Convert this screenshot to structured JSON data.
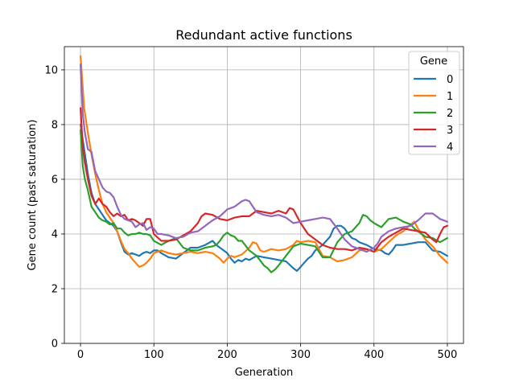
{
  "chart_data": {
    "type": "line",
    "title": "Redundant active functions",
    "xlabel": "Generation",
    "ylabel": "Gene count (past saturation)",
    "xlim": [
      -22,
      522
    ],
    "ylim": [
      0,
      10.85
    ],
    "xticks": [
      0,
      100,
      200,
      300,
      400,
      500
    ],
    "yticks": [
      0,
      2,
      4,
      6,
      8,
      10
    ],
    "grid": true,
    "legend": {
      "title": "Gene",
      "placement": "top-right"
    },
    "series": [
      {
        "name": "0",
        "color": "#1f77b4",
        "x": [
          0,
          5,
          10,
          15,
          20,
          25,
          30,
          35,
          40,
          45,
          50,
          55,
          60,
          65,
          70,
          75,
          80,
          85,
          90,
          95,
          100,
          105,
          110,
          120,
          130,
          140,
          150,
          160,
          170,
          180,
          185,
          190,
          195,
          200,
          205,
          210,
          215,
          220,
          225,
          230,
          240,
          250,
          260,
          270,
          280,
          290,
          295,
          300,
          305,
          310,
          315,
          320,
          330,
          340,
          345,
          350,
          355,
          360,
          365,
          370,
          375,
          380,
          390,
          400,
          410,
          415,
          420,
          425,
          430,
          440,
          450,
          460,
          470,
          480,
          490,
          500
        ],
        "y": [
          8.0,
          7.1,
          6.2,
          5.5,
          5.1,
          4.9,
          4.7,
          4.5,
          4.4,
          4.3,
          4.1,
          3.7,
          3.35,
          3.25,
          3.3,
          3.25,
          3.2,
          3.3,
          3.35,
          3.3,
          3.4,
          3.4,
          3.3,
          3.15,
          3.1,
          3.3,
          3.5,
          3.5,
          3.6,
          3.75,
          3.6,
          3.5,
          3.4,
          3.3,
          3.1,
          2.95,
          3.05,
          3.0,
          3.1,
          3.05,
          3.2,
          3.15,
          3.1,
          3.05,
          3.0,
          2.75,
          2.65,
          2.8,
          2.95,
          3.1,
          3.2,
          3.4,
          3.6,
          3.9,
          4.2,
          4.3,
          4.3,
          4.2,
          4.0,
          3.85,
          3.8,
          3.7,
          3.6,
          3.45,
          3.4,
          3.3,
          3.25,
          3.4,
          3.6,
          3.6,
          3.65,
          3.7,
          3.7,
          3.4,
          3.35,
          3.2
        ]
      },
      {
        "name": "1",
        "color": "#ff7f0e",
        "x": [
          0,
          5,
          10,
          15,
          20,
          25,
          30,
          35,
          40,
          45,
          50,
          55,
          60,
          65,
          70,
          75,
          80,
          85,
          90,
          95,
          100,
          110,
          120,
          130,
          140,
          150,
          160,
          170,
          180,
          190,
          195,
          200,
          205,
          210,
          220,
          230,
          235,
          240,
          245,
          250,
          260,
          270,
          280,
          290,
          295,
          300,
          310,
          320,
          330,
          340,
          350,
          360,
          370,
          380,
          390,
          395,
          400,
          410,
          420,
          430,
          440,
          450,
          455,
          460,
          470,
          480,
          490,
          500
        ],
        "y": [
          10.5,
          8.6,
          7.7,
          6.9,
          6.2,
          5.6,
          5.1,
          4.8,
          4.6,
          4.4,
          4.1,
          3.75,
          3.45,
          3.3,
          3.1,
          2.95,
          2.8,
          2.85,
          2.95,
          3.1,
          3.3,
          3.4,
          3.3,
          3.25,
          3.3,
          3.35,
          3.3,
          3.35,
          3.3,
          3.1,
          2.95,
          3.1,
          3.2,
          3.15,
          3.25,
          3.5,
          3.7,
          3.65,
          3.4,
          3.35,
          3.45,
          3.4,
          3.45,
          3.6,
          3.75,
          3.7,
          3.75,
          3.7,
          3.2,
          3.15,
          3.0,
          3.05,
          3.15,
          3.4,
          3.45,
          3.4,
          3.35,
          3.45,
          3.7,
          3.95,
          4.1,
          4.35,
          4.45,
          4.2,
          3.8,
          3.55,
          3.2,
          2.95
        ]
      },
      {
        "name": "2",
        "color": "#2ca02c",
        "x": [
          0,
          3,
          6,
          10,
          15,
          20,
          25,
          30,
          35,
          40,
          45,
          50,
          55,
          60,
          65,
          70,
          75,
          80,
          85,
          90,
          95,
          100,
          110,
          120,
          130,
          140,
          150,
          160,
          170,
          180,
          185,
          190,
          195,
          200,
          205,
          210,
          215,
          220,
          230,
          240,
          250,
          255,
          260,
          265,
          270,
          280,
          290,
          300,
          310,
          320,
          330,
          340,
          350,
          360,
          370,
          380,
          385,
          390,
          395,
          400,
          410,
          420,
          430,
          440,
          450,
          455,
          460,
          470,
          480,
          490,
          500
        ],
        "y": [
          7.8,
          6.5,
          6.0,
          5.6,
          5.0,
          4.8,
          4.6,
          4.5,
          4.45,
          4.35,
          4.4,
          4.2,
          4.2,
          4.05,
          3.95,
          4.0,
          4.0,
          4.05,
          4.0,
          4.0,
          3.95,
          3.75,
          3.6,
          3.75,
          3.85,
          3.5,
          3.4,
          3.4,
          3.5,
          3.55,
          3.6,
          3.75,
          3.95,
          4.05,
          3.95,
          3.9,
          3.75,
          3.75,
          3.4,
          3.2,
          2.85,
          2.75,
          2.6,
          2.7,
          2.85,
          3.2,
          3.55,
          3.65,
          3.6,
          3.55,
          3.15,
          3.15,
          3.7,
          4.0,
          4.1,
          4.4,
          4.7,
          4.65,
          4.5,
          4.4,
          4.25,
          4.55,
          4.6,
          4.45,
          4.35,
          4.2,
          4.1,
          3.9,
          3.85,
          3.7,
          3.85
        ]
      },
      {
        "name": "3",
        "color": "#d62728",
        "x": [
          0,
          3,
          6,
          10,
          15,
          20,
          25,
          30,
          35,
          40,
          45,
          50,
          55,
          60,
          65,
          70,
          75,
          80,
          85,
          90,
          95,
          100,
          110,
          120,
          130,
          140,
          150,
          160,
          165,
          170,
          180,
          190,
          200,
          210,
          220,
          230,
          240,
          250,
          260,
          270,
          280,
          285,
          290,
          300,
          310,
          320,
          330,
          340,
          350,
          360,
          370,
          380,
          390,
          400,
          410,
          420,
          430,
          440,
          450,
          460,
          470,
          480,
          485,
          490,
          495,
          500
        ],
        "y": [
          8.6,
          7.2,
          6.6,
          6.0,
          5.4,
          5.1,
          5.3,
          5.1,
          5.0,
          4.8,
          4.65,
          4.75,
          4.65,
          4.7,
          4.5,
          4.55,
          4.5,
          4.4,
          4.3,
          4.55,
          4.55,
          4.0,
          3.75,
          3.75,
          3.8,
          3.95,
          4.1,
          4.4,
          4.65,
          4.75,
          4.7,
          4.55,
          4.5,
          4.6,
          4.65,
          4.65,
          4.85,
          4.8,
          4.75,
          4.85,
          4.75,
          4.95,
          4.9,
          4.4,
          4.0,
          3.8,
          3.6,
          3.5,
          3.45,
          3.45,
          3.4,
          3.5,
          3.45,
          3.35,
          3.7,
          3.9,
          4.05,
          4.2,
          4.15,
          4.1,
          4.05,
          3.8,
          3.7,
          4.0,
          4.25,
          4.3
        ]
      },
      {
        "name": "4",
        "color": "#9467bd",
        "x": [
          0,
          3,
          6,
          10,
          15,
          20,
          25,
          30,
          35,
          40,
          45,
          50,
          55,
          60,
          65,
          70,
          75,
          80,
          85,
          90,
          95,
          100,
          105,
          110,
          120,
          130,
          140,
          150,
          160,
          170,
          180,
          190,
          200,
          205,
          210,
          215,
          220,
          225,
          230,
          235,
          240,
          250,
          260,
          270,
          280,
          290,
          300,
          310,
          320,
          330,
          340,
          350,
          360,
          370,
          380,
          390,
          400,
          405,
          410,
          420,
          430,
          440,
          450,
          460,
          470,
          480,
          490,
          500
        ],
        "y": [
          10.2,
          8.4,
          7.7,
          7.1,
          7.0,
          6.3,
          6.0,
          5.7,
          5.55,
          5.5,
          5.35,
          5.0,
          4.7,
          4.55,
          4.5,
          4.45,
          4.25,
          4.35,
          4.4,
          4.15,
          4.25,
          4.2,
          4.0,
          4.0,
          3.95,
          3.85,
          3.9,
          4.05,
          4.1,
          4.3,
          4.5,
          4.65,
          4.9,
          4.95,
          5.0,
          5.1,
          5.2,
          5.25,
          5.2,
          5.0,
          4.8,
          4.7,
          4.65,
          4.7,
          4.6,
          4.4,
          4.45,
          4.5,
          4.55,
          4.6,
          4.55,
          4.2,
          3.8,
          3.55,
          3.45,
          3.35,
          3.5,
          3.65,
          3.9,
          4.1,
          4.2,
          4.25,
          4.3,
          4.5,
          4.75,
          4.75,
          4.55,
          4.45
        ]
      }
    ]
  }
}
